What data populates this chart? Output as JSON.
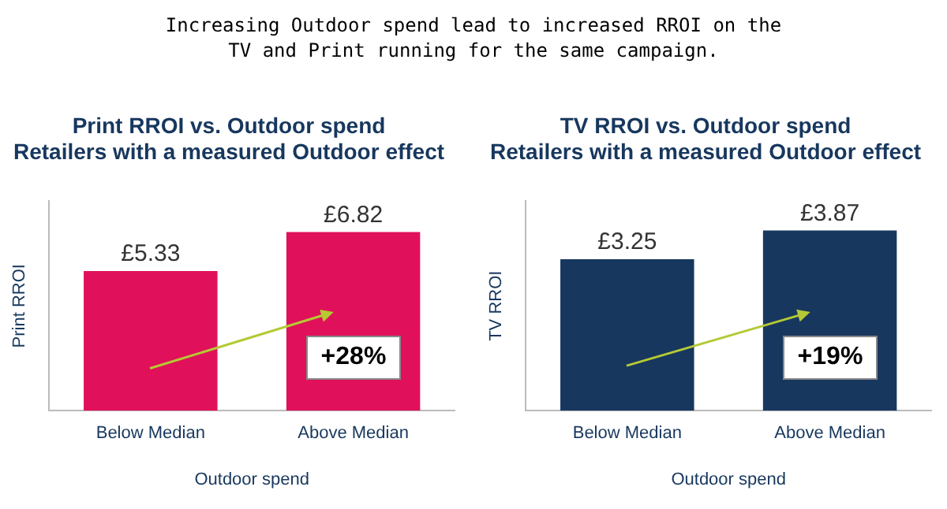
{
  "chart_data": [
    {
      "type": "other",
      "title": "Increasing Outdoor spend lead to increased RROI on the\nTV and Print running for the same campaign."
    },
    {
      "type": "bar",
      "title": "Print RROI vs. Outdoor spend\nRetailers with a measured Outdoor effect",
      "xlabel": "Outdoor spend",
      "ylabel": "Print RROI",
      "categories": [
        "Below Median",
        "Above Median"
      ],
      "values": [
        5.33,
        6.82
      ],
      "value_labels": [
        "£5.33",
        "£6.82"
      ],
      "color": "#e0105a",
      "annotations": [
        "+28%"
      ],
      "tick_labels": "x",
      "grid": false,
      "legend": false
    },
    {
      "type": "bar",
      "title": "TV RROI vs. Outdoor spend\nRetailers with a measured Outdoor effect",
      "xlabel": "Outdoor spend",
      "ylabel": "TV RROI",
      "categories": [
        "Below Median",
        "Above Median"
      ],
      "values": [
        3.25,
        3.87
      ],
      "value_labels": [
        "£3.25",
        "£3.87"
      ],
      "color": "#17375e",
      "annotations": [
        "+19%"
      ],
      "tick_labels": "x",
      "grid": false,
      "legend": false
    }
  ]
}
